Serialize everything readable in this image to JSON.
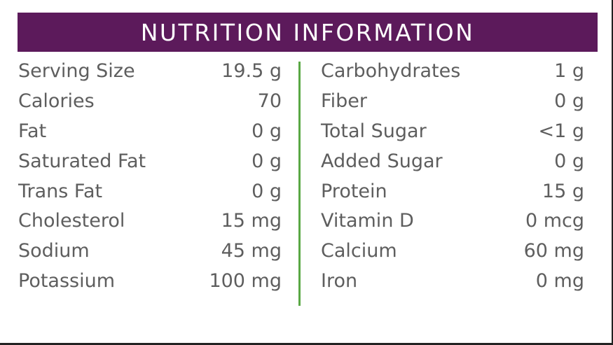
{
  "header": {
    "title": "NUTRITION INFORMATION"
  },
  "colors": {
    "header_bg": "#5c1a5b",
    "divider": "#5aa845",
    "text": "#5e5e5e"
  },
  "left_column": [
    {
      "label": "Serving Size",
      "value": "19.5 g"
    },
    {
      "label": "Calories",
      "value": "70"
    },
    {
      "label": "Fat",
      "value": "0 g"
    },
    {
      "label": "Saturated Fat",
      "value": "0 g"
    },
    {
      "label": "Trans Fat",
      "value": "0 g"
    },
    {
      "label": "Cholesterol",
      "value": "15 mg"
    },
    {
      "label": "Sodium",
      "value": "45 mg"
    },
    {
      "label": "Potassium",
      "value": "100 mg"
    }
  ],
  "right_column": [
    {
      "label": "Carbohydrates",
      "value": "1 g"
    },
    {
      "label": "Fiber",
      "value": "0 g"
    },
    {
      "label": "Total Sugar",
      "value": "<1 g"
    },
    {
      "label": "Added Sugar",
      "value": "0 g"
    },
    {
      "label": "Protein",
      "value": "15 g"
    },
    {
      "label": "Vitamin D",
      "value": "0 mcg"
    },
    {
      "label": "Calcium",
      "value": "60 mg"
    },
    {
      "label": "Iron",
      "value": "0 mg"
    }
  ]
}
